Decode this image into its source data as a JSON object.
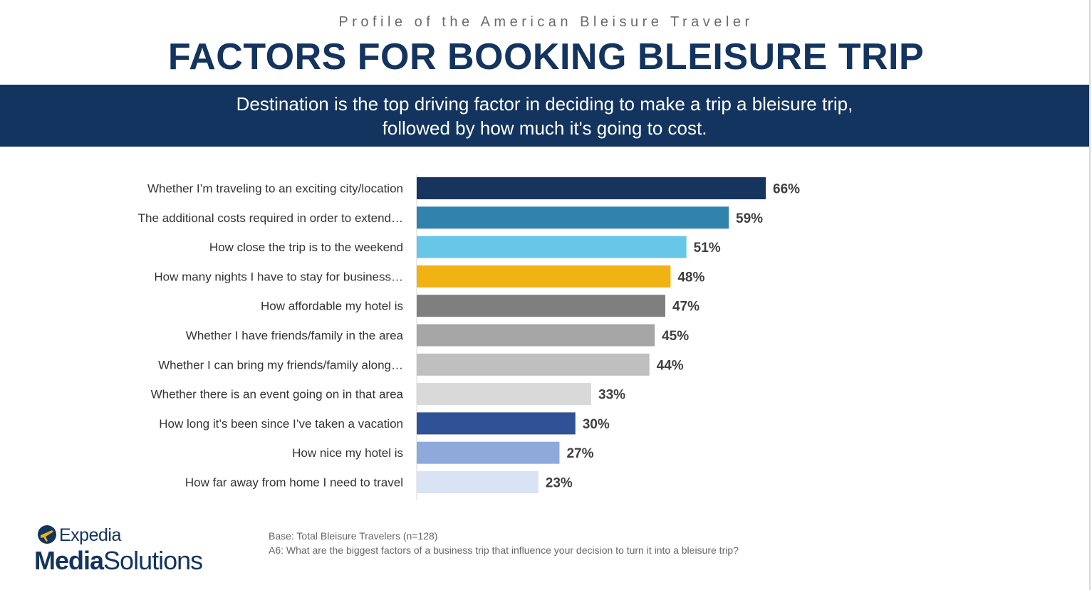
{
  "header": {
    "kicker": "Profile of the American Bleisure Traveler",
    "title": "FACTORS FOR BOOKING BLEISURE TRIP",
    "banner_line1": "Destination is the top driving factor in deciding to make a trip a bleisure trip,",
    "banner_line2": "followed by how much it's going to cost."
  },
  "chart_data": {
    "type": "bar",
    "orientation": "horizontal",
    "categories": [
      "Whether I’m traveling to an exciting city/location",
      "The additional costs required in order to extend…",
      "How close the trip is to the weekend",
      "How many nights I have to stay for business…",
      "How affordable my hotel is",
      "Whether I have friends/family in the area",
      "Whether I can bring my friends/family along…",
      "Whether there is an event going on in that area",
      "How long it’s been since I’ve taken a vacation",
      "How nice my hotel is",
      "How far away from home I need to travel"
    ],
    "values": [
      66,
      59,
      51,
      48,
      47,
      45,
      44,
      33,
      30,
      27,
      23
    ],
    "value_labels": [
      "66%",
      "59%",
      "51%",
      "48%",
      "47%",
      "45%",
      "44%",
      "33%",
      "30%",
      "27%",
      "23%"
    ],
    "colors": [
      "#17345f",
      "#3282ae",
      "#68c7e7",
      "#f0b313",
      "#7f7f7f",
      "#a6a6a6",
      "#bfbfbf",
      "#d9d9d9",
      "#2e5295",
      "#8eaadb",
      "#dae3f3"
    ],
    "unit": "%",
    "xlim": [
      0,
      100
    ],
    "grid": false,
    "legend": "none"
  },
  "footer": {
    "logo_brand": "Expedia",
    "logo_product_bold": "Media",
    "logo_product_light": "Solutions",
    "base_note": "Base: Total Bleisure Travelers (n=128)",
    "question_note": "A6: What are the biggest factors of a business trip that influence your decision to turn it into a bleisure trip?"
  }
}
